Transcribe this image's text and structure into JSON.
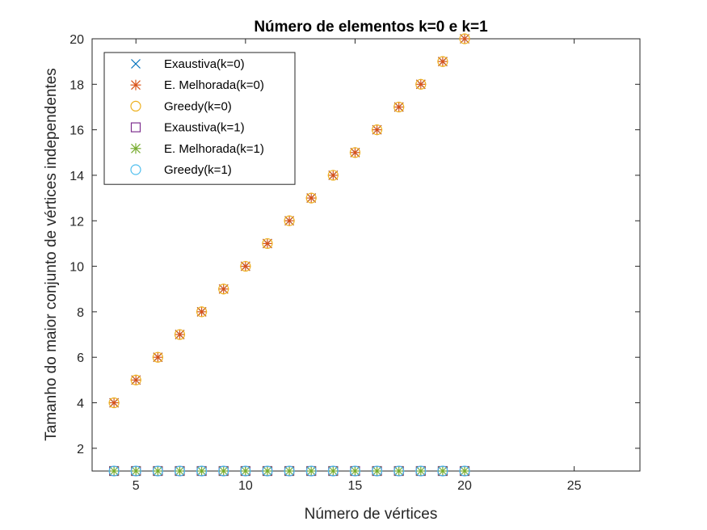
{
  "chart_data": {
    "type": "scatter",
    "title": "Número de elementos k=0 e k=1",
    "xlabel": "Número de vértices",
    "ylabel": "Tamanho do maior conjunto de vértices independentes",
    "xlim": [
      3,
      28
    ],
    "ylim": [
      1,
      20
    ],
    "xticks": [
      5,
      10,
      15,
      20,
      25
    ],
    "yticks": [
      2,
      4,
      6,
      8,
      10,
      12,
      14,
      16,
      18,
      20
    ],
    "grid": false,
    "legend_position": "top-left",
    "series": [
      {
        "name": "Exaustiva(k=0)",
        "marker": "x",
        "color": "#0072BD",
        "x": [
          4,
          5,
          6,
          7,
          8,
          9,
          10,
          11,
          12,
          13,
          14,
          15,
          16,
          17,
          18,
          19,
          20
        ],
        "y": [
          4,
          5,
          6,
          7,
          8,
          9,
          10,
          11,
          12,
          13,
          14,
          15,
          16,
          17,
          18,
          19,
          20
        ]
      },
      {
        "name": "E. Melhorada(k=0)",
        "marker": "asterisk",
        "color": "#D95319",
        "x": [
          4,
          5,
          6,
          7,
          8,
          9,
          10,
          11,
          12,
          13,
          14,
          15,
          16,
          17,
          18,
          19,
          20
        ],
        "y": [
          4,
          5,
          6,
          7,
          8,
          9,
          10,
          11,
          12,
          13,
          14,
          15,
          16,
          17,
          18,
          19,
          20
        ]
      },
      {
        "name": "Greedy(k=0)",
        "marker": "circle",
        "color": "#EDB120",
        "x": [
          4,
          5,
          6,
          7,
          8,
          9,
          10,
          11,
          12,
          13,
          14,
          15,
          16,
          17,
          18,
          19,
          20
        ],
        "y": [
          4,
          5,
          6,
          7,
          8,
          9,
          10,
          11,
          12,
          13,
          14,
          15,
          16,
          17,
          18,
          19,
          20
        ]
      },
      {
        "name": "Exaustiva(k=1)",
        "marker": "square",
        "color": "#7E2F8E",
        "x": [
          4,
          5,
          6,
          7,
          8,
          9,
          10,
          11,
          12,
          13,
          14,
          15,
          16,
          17,
          18,
          19,
          20
        ],
        "y": [
          1,
          1,
          1,
          1,
          1,
          1,
          1,
          1,
          1,
          1,
          1,
          1,
          1,
          1,
          1,
          1,
          1
        ]
      },
      {
        "name": "E. Melhorada(k=1)",
        "marker": "asterisk",
        "color": "#77AC30",
        "x": [
          4,
          5,
          6,
          7,
          8,
          9,
          10,
          11,
          12,
          13,
          14,
          15,
          16,
          17,
          18,
          19,
          20
        ],
        "y": [
          1,
          1,
          1,
          1,
          1,
          1,
          1,
          1,
          1,
          1,
          1,
          1,
          1,
          1,
          1,
          1,
          1
        ]
      },
      {
        "name": "Greedy(k=1)",
        "marker": "circle",
        "color": "#4DBEEE",
        "x": [
          4,
          5,
          6,
          7,
          8,
          9,
          10,
          11,
          12,
          13,
          14,
          15,
          16,
          17,
          18,
          19,
          20
        ],
        "y": [
          1,
          1,
          1,
          1,
          1,
          1,
          1,
          1,
          1,
          1,
          1,
          1,
          1,
          1,
          1,
          1,
          1
        ]
      }
    ]
  }
}
